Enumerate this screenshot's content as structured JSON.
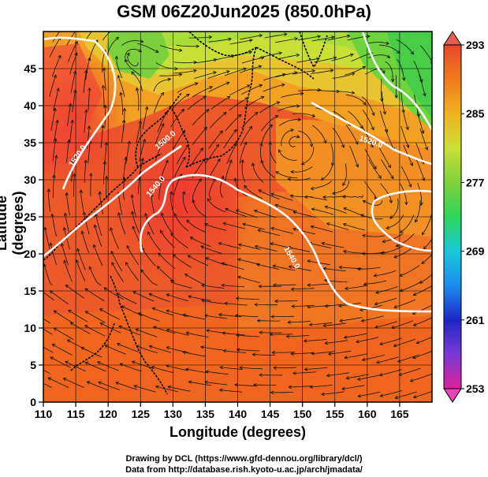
{
  "title": "GSM 06Z20Jun2025 (850.0hPa)",
  "axes": {
    "xlabel": "Longitude (degrees)",
    "ylabel": "Latitude (degrees)",
    "xticks": [
      110,
      115,
      120,
      125,
      130,
      135,
      140,
      145,
      150,
      155,
      160,
      165
    ],
    "yticks": [
      0,
      5,
      10,
      15,
      20,
      25,
      30,
      35,
      40,
      45
    ],
    "xlim": [
      110,
      170
    ],
    "ylim": [
      0,
      50
    ]
  },
  "colorbar": {
    "labels": [
      293,
      285,
      277,
      269,
      261,
      253
    ],
    "min": 253,
    "max": 293,
    "colors": [
      "#e0209a",
      "#7a3ad6",
      "#1f25c8",
      "#1b8cf0",
      "#17c8d8",
      "#2ed55a",
      "#7fd13a",
      "#c9e035",
      "#f2b21f",
      "#f07a1c",
      "#e8472a"
    ]
  },
  "contours": [
    {
      "label": "1500.0"
    },
    {
      "label": "1520.0"
    },
    {
      "label": "1520.0"
    },
    {
      "label": "1540.0"
    },
    {
      "label": "1540.0"
    }
  ],
  "credits": {
    "line1": "Drawing by DCL (https://www.gfd-dennou.org/library/dcl/)",
    "line2": "Data from http://database.rish.kyoto-u.ac.jp/arch/jmadata/"
  }
}
